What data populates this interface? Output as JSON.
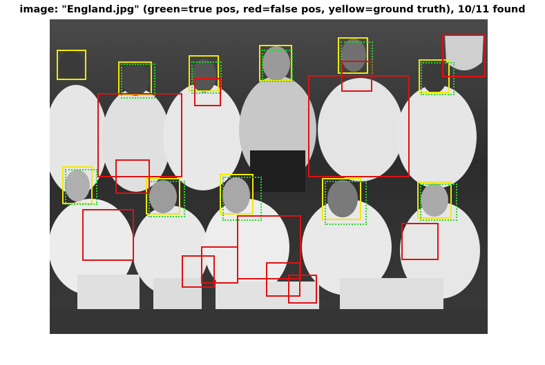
{
  "title": "image: \"England.jpg\" (green=true pos, red=false pos, yellow=ground truth), 10/11 found",
  "legend": {
    "true_positive_color": "#22dd22",
    "false_positive_color": "#e01010",
    "ground_truth_color": "#f2ea00"
  },
  "image": {
    "name": "England.jpg",
    "type": "grayscale team photograph"
  },
  "detection_summary": {
    "found": 10,
    "total": 11
  }
}
